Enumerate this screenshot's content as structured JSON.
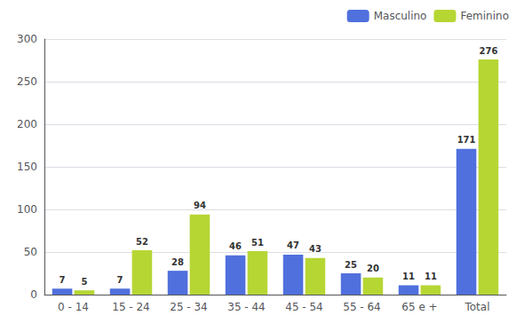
{
  "chart_data": {
    "type": "bar",
    "categories": [
      "0 - 14",
      "15 - 24",
      "25 - 34",
      "35 - 44",
      "45 - 54",
      "55 - 64",
      "65 e +",
      "Total"
    ],
    "series": [
      {
        "name": "Masculino",
        "values": [
          7,
          7,
          28,
          46,
          47,
          25,
          11,
          171
        ]
      },
      {
        "name": "Feminino",
        "values": [
          5,
          52,
          94,
          51,
          43,
          20,
          11,
          276
        ]
      }
    ],
    "ylim": [
      0,
      300
    ],
    "yticks": [
      0,
      50,
      100,
      150,
      200,
      250,
      300
    ],
    "grid": true,
    "legend": "upper right",
    "data_labels": true
  }
}
